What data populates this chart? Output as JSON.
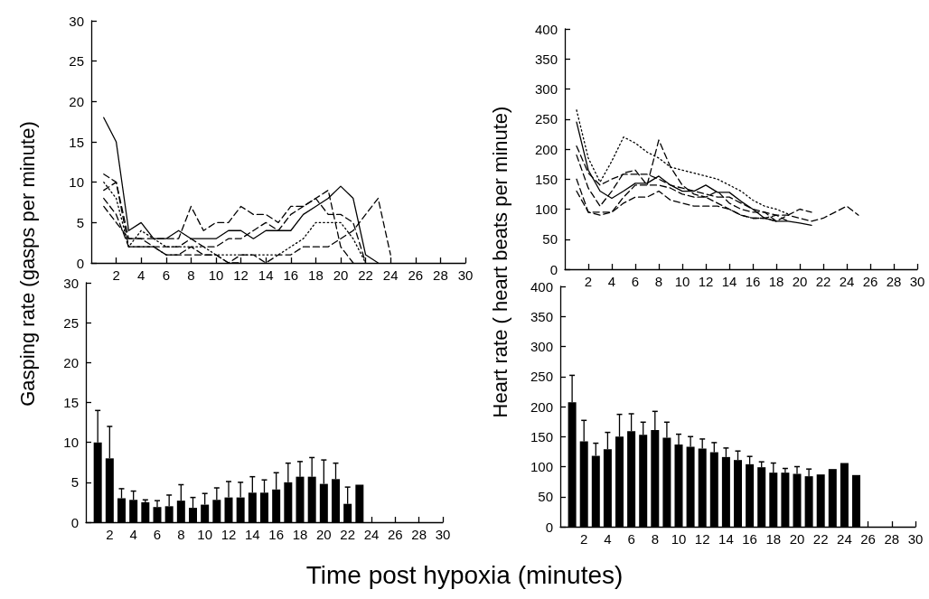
{
  "chart_data": [
    {
      "type": "line",
      "ylabel": "Gasping rate (gasps per minute)",
      "marker": "none",
      "xlim": [
        0,
        30
      ],
      "xticks": [
        2,
        4,
        6,
        8,
        10,
        12,
        14,
        16,
        18,
        20,
        22,
        24,
        26,
        28,
        30
      ],
      "ylim": [
        0,
        30
      ],
      "yticks": [
        0,
        5,
        10,
        15,
        20,
        25,
        30
      ],
      "series": [
        {
          "color": "#000000",
          "line_style": "solid",
          "x": [
            1,
            2,
            3,
            4,
            5,
            6,
            7,
            8,
            9,
            10,
            11,
            12,
            13,
            14,
            15,
            16,
            17,
            18,
            19,
            20,
            21,
            22,
            23
          ],
          "values": [
            18,
            15,
            4,
            5,
            3,
            3,
            4,
            3,
            3,
            3,
            4,
            4,
            3,
            4,
            4,
            4,
            6,
            7,
            8,
            9.5,
            8,
            1,
            0
          ]
        },
        {
          "color": "#000000",
          "line_style": "dashed",
          "x": [
            1,
            2,
            3,
            4,
            5,
            6,
            7,
            8,
            9,
            10,
            11,
            12,
            13,
            14,
            15,
            16,
            17,
            18,
            19,
            20,
            21
          ],
          "values": [
            7,
            5,
            3,
            3,
            3,
            3,
            3,
            7,
            4,
            5,
            5,
            7,
            6,
            6,
            5,
            7,
            7,
            8,
            9,
            2,
            0
          ]
        },
        {
          "color": "#000000",
          "line_style": "dashed",
          "x": [
            1,
            2,
            3,
            4,
            5,
            6,
            7,
            8,
            9,
            10,
            11,
            12,
            13,
            14,
            15,
            16,
            17,
            18,
            19,
            20,
            21,
            22
          ],
          "values": [
            11,
            10,
            3,
            3,
            2,
            2,
            2,
            3,
            2,
            2,
            3,
            3,
            4,
            5,
            4,
            6,
            7,
            8,
            6,
            6,
            5,
            0
          ]
        },
        {
          "color": "#000000",
          "line_style": "dotted",
          "x": [
            1,
            2,
            3,
            4,
            5,
            6,
            7,
            8,
            9,
            10,
            11,
            12,
            13,
            14,
            15,
            16,
            17,
            18,
            19,
            20,
            21,
            22
          ],
          "values": [
            10,
            8,
            2,
            4,
            3,
            2,
            2,
            2,
            2,
            1,
            1,
            1,
            1,
            1,
            1,
            2,
            3,
            5,
            5,
            5,
            3,
            0
          ]
        },
        {
          "color": "#000000",
          "line_style": "dashed",
          "x": [
            1,
            2,
            3,
            4,
            5,
            6,
            7,
            8,
            9,
            10,
            11,
            12,
            13,
            14,
            15,
            16,
            17,
            18,
            19,
            20,
            21,
            22,
            23,
            24
          ],
          "values": [
            8,
            6,
            2,
            2,
            2,
            1,
            1,
            2,
            1,
            1,
            0,
            1,
            1,
            0,
            1,
            1,
            2,
            2,
            2,
            3,
            4,
            6,
            8,
            1
          ]
        },
        {
          "color": "#000000",
          "line_style": "dashed",
          "x": [
            1,
            2,
            3,
            4,
            5,
            6,
            7,
            8,
            9,
            10,
            11,
            12
          ],
          "values": [
            9,
            10,
            2,
            2,
            2,
            1,
            1,
            1,
            1,
            1,
            0,
            0
          ]
        }
      ]
    },
    {
      "type": "line",
      "ylabel": "Heart rate ( heart beats per minute)",
      "marker": "none",
      "xlim": [
        0,
        30
      ],
      "xticks": [
        2,
        4,
        6,
        8,
        10,
        12,
        14,
        16,
        18,
        20,
        22,
        24,
        26,
        28,
        30
      ],
      "ylim": [
        0,
        400
      ],
      "yticks": [
        0,
        50,
        100,
        150,
        200,
        250,
        300,
        350,
        400
      ],
      "series": [
        {
          "color": "#000000",
          "line_style": "solid",
          "x": [
            1,
            2,
            3,
            4,
            5,
            6,
            7,
            8,
            9,
            10,
            11,
            12,
            13,
            14,
            15,
            16,
            17,
            18,
            19,
            20,
            21
          ],
          "values": [
            245,
            165,
            130,
            118,
            130,
            143,
            143,
            155,
            140,
            130,
            130,
            140,
            128,
            128,
            113,
            100,
            85,
            80,
            80,
            77,
            73
          ]
        },
        {
          "color": "#000000",
          "line_style": "dotted",
          "x": [
            1,
            2,
            3,
            4,
            5,
            6,
            7,
            8,
            9,
            10,
            11,
            12,
            13,
            14,
            15,
            16,
            17,
            18,
            19
          ],
          "values": [
            265,
            185,
            145,
            180,
            220,
            210,
            195,
            185,
            170,
            165,
            160,
            155,
            150,
            140,
            130,
            115,
            105,
            100,
            92
          ]
        },
        {
          "color": "#000000",
          "line_style": "dashed",
          "x": [
            1,
            2,
            3,
            4,
            5,
            6,
            7,
            8,
            9,
            10,
            11,
            12,
            13,
            14,
            15,
            16,
            17,
            18,
            19,
            20,
            21,
            22,
            23,
            24,
            25
          ],
          "values": [
            205,
            160,
            140,
            150,
            158,
            158,
            158,
            150,
            140,
            135,
            130,
            125,
            120,
            120,
            110,
            100,
            95,
            90,
            90,
            85,
            80,
            85,
            95,
            105,
            90
          ]
        },
        {
          "color": "#000000",
          "line_style": "dashed",
          "x": [
            1,
            2,
            3,
            4,
            5,
            6,
            7,
            8,
            9,
            10,
            11,
            12,
            13,
            14,
            15,
            16,
            17,
            18,
            19,
            20,
            21
          ],
          "values": [
            190,
            135,
            105,
            130,
            160,
            165,
            140,
            215,
            170,
            140,
            125,
            120,
            130,
            110,
            100,
            95,
            95,
            80,
            90,
            100,
            95
          ]
        },
        {
          "color": "#000000",
          "line_style": "dashed",
          "x": [
            1,
            2,
            3,
            4,
            5,
            6,
            7,
            8,
            9,
            10,
            11,
            12,
            13,
            14,
            15,
            16,
            17,
            18
          ],
          "values": [
            130,
            95,
            90,
            95,
            110,
            120,
            120,
            130,
            115,
            110,
            105,
            105,
            105,
            100,
            90,
            85,
            85,
            80
          ]
        },
        {
          "color": "#000000",
          "line_style": "dashed",
          "x": [
            1,
            2,
            3,
            4,
            5,
            6,
            7,
            8,
            9,
            10,
            11,
            12,
            13,
            14,
            15,
            16,
            17,
            18,
            19
          ],
          "values": [
            150,
            95,
            95,
            95,
            120,
            140,
            140,
            140,
            135,
            125,
            120,
            120,
            110,
            100,
            90,
            85,
            85,
            90,
            80
          ]
        }
      ]
    },
    {
      "type": "bar",
      "xlim": [
        0,
        30
      ],
      "xticks": [
        2,
        4,
        6,
        8,
        10,
        12,
        14,
        16,
        18,
        20,
        22,
        24,
        26,
        28,
        30
      ],
      "ylim": [
        0,
        30
      ],
      "yticks": [
        0,
        5,
        10,
        15,
        20,
        25,
        30
      ],
      "color": "#000000",
      "x": [
        1,
        2,
        3,
        4,
        5,
        6,
        7,
        8,
        9,
        10,
        11,
        12,
        13,
        14,
        15,
        16,
        17,
        18,
        19,
        20,
        21,
        22,
        23
      ],
      "values": [
        10,
        8,
        3,
        2.8,
        2.5,
        1.9,
        2,
        2.7,
        1.8,
        2.2,
        2.8,
        3.1,
        3.1,
        3.7,
        3.7,
        4.1,
        5,
        5.7,
        5.7,
        4.8,
        5.4,
        2.3,
        4.7
      ],
      "errors": [
        [
          10,
          14
        ],
        [
          8,
          12
        ],
        [
          3,
          4.2
        ],
        [
          2.8,
          3.9
        ],
        [
          2.5,
          2.8
        ],
        [
          1.9,
          2.7
        ],
        [
          2,
          3.4
        ],
        [
          2.7,
          4.7
        ],
        [
          1.8,
          3.1
        ],
        [
          2.2,
          3.6
        ],
        [
          2.8,
          4.3
        ],
        [
          3.1,
          5.1
        ],
        [
          3.1,
          5
        ],
        [
          3.7,
          5.7
        ],
        [
          3.7,
          5.3
        ],
        [
          4.1,
          6.2
        ],
        [
          5,
          7.4
        ],
        [
          5.7,
          7.6
        ],
        [
          5.7,
          8.1
        ],
        [
          4.8,
          7.8
        ],
        [
          5.4,
          7.4
        ],
        [
          2.3,
          4.4
        ],
        null
      ]
    },
    {
      "type": "bar",
      "xlabel": "Time post hypoxia (minutes)",
      "xlim": [
        0,
        30
      ],
      "xticks": [
        2,
        4,
        6,
        8,
        10,
        12,
        14,
        16,
        18,
        20,
        22,
        24,
        26,
        28,
        30
      ],
      "ylim": [
        0,
        400
      ],
      "yticks": [
        0,
        50,
        100,
        150,
        200,
        250,
        300,
        350,
        400
      ],
      "color": "#000000",
      "x": [
        1,
        2,
        3,
        4,
        5,
        6,
        7,
        8,
        9,
        10,
        11,
        12,
        13,
        14,
        15,
        16,
        17,
        18,
        19,
        20,
        21,
        22,
        23,
        24,
        25
      ],
      "values": [
        207,
        142,
        118,
        129,
        150,
        159,
        153,
        161,
        148,
        137,
        133,
        130,
        124,
        116,
        111,
        104,
        99,
        90,
        90,
        88,
        84,
        87,
        96,
        106,
        86
      ],
      "errors": [
        [
          207,
          252
        ],
        [
          142,
          177
        ],
        [
          118,
          139
        ],
        [
          129,
          157
        ],
        [
          150,
          187
        ],
        [
          159,
          188
        ],
        [
          153,
          174
        ],
        [
          161,
          192
        ],
        [
          148,
          174
        ],
        [
          137,
          154
        ],
        [
          133,
          150
        ],
        [
          130,
          146
        ],
        [
          124,
          140
        ],
        [
          116,
          131
        ],
        [
          111,
          126
        ],
        [
          104,
          117
        ],
        [
          99,
          108
        ],
        [
          90,
          106
        ],
        [
          90,
          97
        ],
        [
          88,
          100
        ],
        [
          84,
          96
        ],
        null,
        null,
        null,
        null
      ]
    }
  ]
}
